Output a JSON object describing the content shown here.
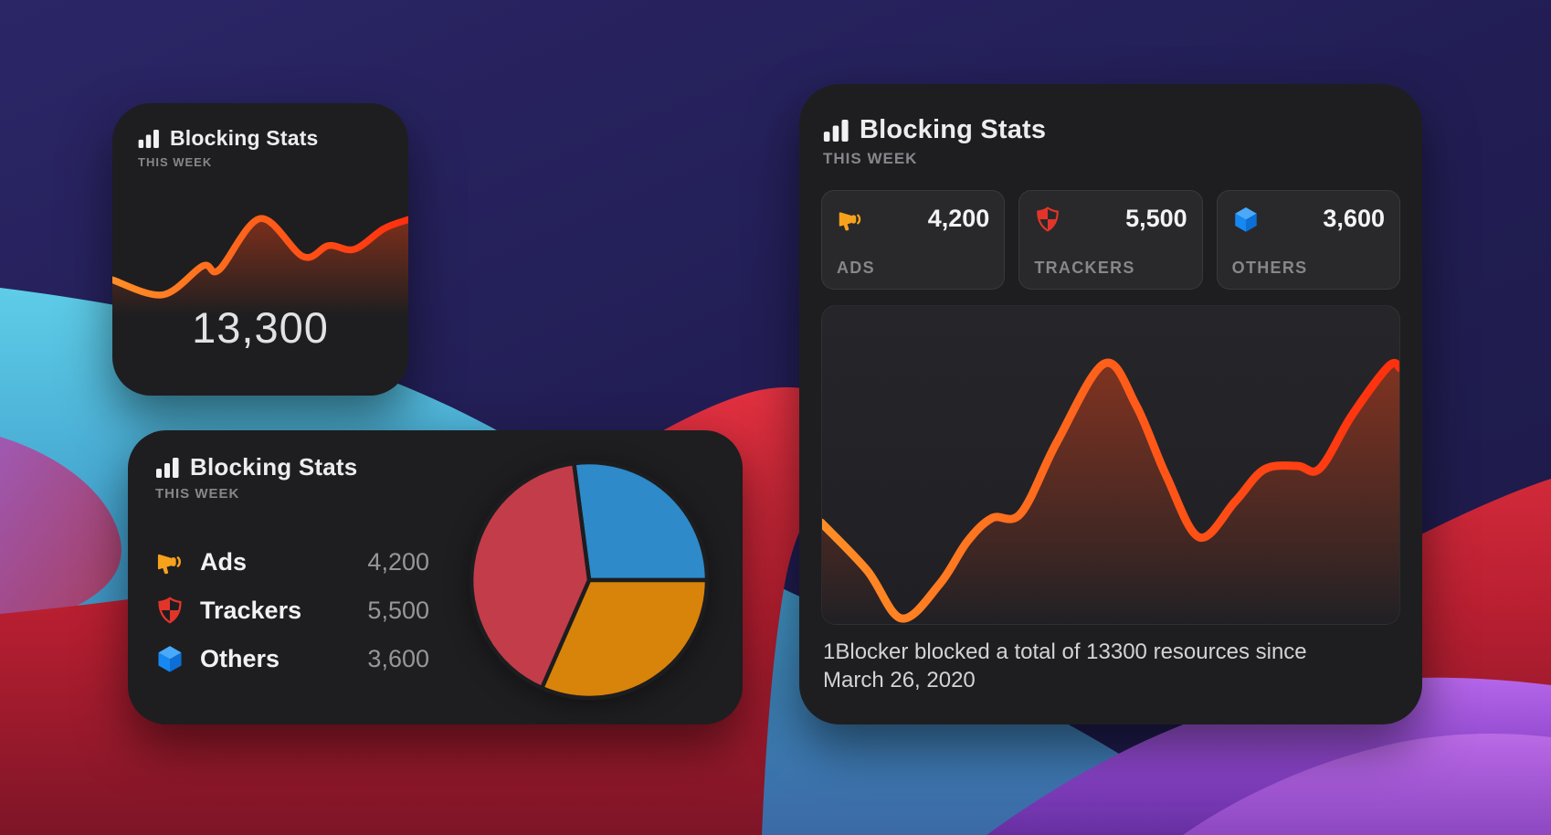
{
  "background": {
    "description": "macOS Big Sur abstract wave wallpaper",
    "gradients": {
      "g-base": [
        "#2b2666",
        "#221e55",
        "#1d1a48"
      ],
      "g-cyan": [
        "#5ecde8",
        "#42a0cc",
        "#3b6aa6"
      ],
      "g-red": [
        "#e23140",
        "#b81f31",
        "#7d1527"
      ],
      "g-violet": [
        "#b566ea",
        "#8a43c8",
        "#662fa0"
      ],
      "g-magenta": [
        "#a84fae",
        "#b33553"
      ],
      "g-violet-hi": [
        "#cf7cf0",
        "#a758d8"
      ]
    }
  },
  "colors": {
    "widget_bg": "#1e1e20",
    "accent_line_start": "#ff8e26",
    "accent_line_end": "#ff2f0e",
    "area_fill_top": "rgba(255,70,20,0.42)",
    "area_fill_mid": "rgba(255,70,20,0.10)",
    "area_fill_bottom": "rgba(255,70,20,0)",
    "pie_stroke": "#1d1d1f",
    "bars_icon": "#f1f1f3",
    "megaphone_icon": "#f7a21c",
    "shield_icon": "#e3342a",
    "cube_icon": [
      "#49aafc",
      "#1688f2",
      "#0c6fd6"
    ]
  },
  "widgets": {
    "small": {
      "title": "Blocking Stats",
      "subtitle": "THIS WEEK",
      "total": "13,300"
    },
    "medium": {
      "title": "Blocking Stats",
      "subtitle": "THIS WEEK",
      "rows": [
        {
          "icon": "megaphone-icon",
          "label": "Ads",
          "value": "4,200"
        },
        {
          "icon": "shield-icon",
          "label": "Trackers",
          "value": "5,500"
        },
        {
          "icon": "cube-icon",
          "label": "Others",
          "value": "3,600"
        }
      ]
    },
    "large": {
      "title": "Blocking Stats",
      "subtitle": "THIS WEEK",
      "stats": [
        {
          "icon": "megaphone-icon",
          "value": "4,200",
          "label": "ADS"
        },
        {
          "icon": "shield-icon",
          "value": "5,500",
          "label": "TRACKERS"
        },
        {
          "icon": "cube-icon",
          "value": "3,600",
          "label": "OTHERS"
        }
      ],
      "caption": "1Blocker blocked a total of 13300 resources since March 26, 2020"
    }
  },
  "chart_data": [
    {
      "type": "area",
      "widget": "small",
      "title": "Blocking Stats — This Week",
      "total_label": "13,300",
      "xlabel": "",
      "ylabel": "",
      "axes": "hidden",
      "grid": false,
      "points_pct": [
        [
          0,
          31.7
        ],
        [
          17,
          18.3
        ],
        [
          30.6,
          44.2
        ],
        [
          36.1,
          40.8
        ],
        [
          50,
          86.7
        ],
        [
          64.5,
          52.5
        ],
        [
          73.1,
          62.5
        ],
        [
          81.8,
          59.2
        ],
        [
          91.7,
          77.5
        ],
        [
          100,
          85.8
        ]
      ]
    },
    {
      "type": "pie",
      "widget": "medium",
      "title": "Blocking Stats — This Week",
      "total": 13300,
      "start_angle_deg": -7.45,
      "slices": [
        {
          "label": "Others",
          "value": 3600,
          "color": "#2e8ac9"
        },
        {
          "label": "Ads",
          "value": 4200,
          "color": "#d8830a"
        },
        {
          "label": "Trackers",
          "value": 5500,
          "color": "#c23d49"
        }
      ]
    },
    {
      "type": "area",
      "widget": "large",
      "title": "Blocking Stats — This Week",
      "xlabel": "",
      "ylabel": "",
      "axes": "hidden",
      "grid": false,
      "points_pct": [
        [
          0,
          32
        ],
        [
          7.9,
          17.1
        ],
        [
          13.9,
          2
        ],
        [
          20.5,
          12.9
        ],
        [
          25.2,
          26
        ],
        [
          29.5,
          33.4
        ],
        [
          34.5,
          34.9
        ],
        [
          40.7,
          57.1
        ],
        [
          48.9,
          81.7
        ],
        [
          54.4,
          68.6
        ],
        [
          59.6,
          46.6
        ],
        [
          65.3,
          27.4
        ],
        [
          71.5,
          38.6
        ],
        [
          76.5,
          48.6
        ],
        [
          82.2,
          49.7
        ],
        [
          86.1,
          48.9
        ],
        [
          91.6,
          65.4
        ],
        [
          98,
          80.9
        ],
        [
          100,
          80.3
        ]
      ]
    }
  ]
}
